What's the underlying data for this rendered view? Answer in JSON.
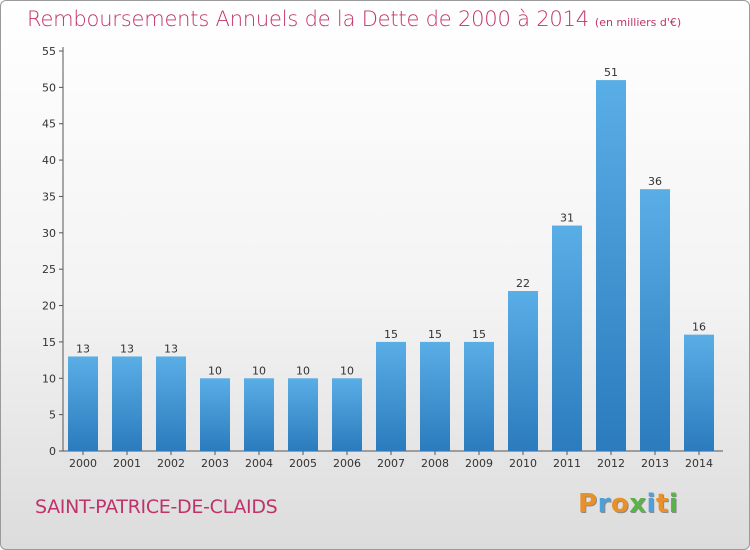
{
  "title": "Remboursements Annuels de la Dette de 2000 à 2014",
  "unit": "(en milliers d'€)",
  "town": "SAINT-PATRICE-DE-CLAIDS",
  "logo": {
    "letters": [
      "P",
      "r",
      "o",
      "x",
      "i",
      "t",
      "i"
    ],
    "colors": [
      "#e8912c",
      "#4f9fd8",
      "#e8912c",
      "#5bb24a",
      "#4f9fd8",
      "#e8912c",
      "#5bb24a"
    ]
  },
  "colors": {
    "bar_light": "#5aaee6",
    "bar_dark": "#2b7bbd",
    "title": "#c0336a"
  },
  "chart_data": {
    "type": "bar",
    "title": "Remboursements Annuels de la Dette de 2000 à 2014",
    "xlabel": "",
    "ylabel": "",
    "categories": [
      "2000",
      "2001",
      "2002",
      "2003",
      "2004",
      "2005",
      "2006",
      "2007",
      "2008",
      "2009",
      "2010",
      "2011",
      "2012",
      "2013",
      "2014"
    ],
    "values": [
      13,
      13,
      13,
      10,
      10,
      10,
      10,
      15,
      15,
      15,
      22,
      31,
      51,
      36,
      16
    ],
    "ylim": [
      0,
      55
    ],
    "yticks": [
      0,
      5,
      10,
      15,
      20,
      25,
      30,
      35,
      40,
      45,
      50,
      55
    ],
    "grid": false,
    "legend": "none"
  }
}
